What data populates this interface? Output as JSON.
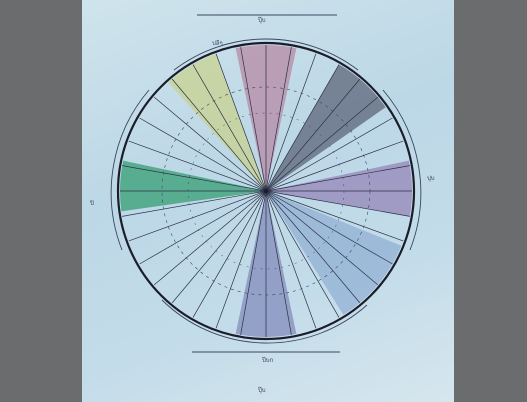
{
  "diagram": {
    "palette": {
      "background": "#6b6c6e",
      "paper": "#c6dde9",
      "ink": "#1b1d2a",
      "pink": "#b58aa6",
      "purple": "#9685b8",
      "darkgray": "#5e6579",
      "green": "#3fa17a",
      "yellow": "#c9d07a",
      "blue": "#7fa0cc",
      "slateblue": "#7f86b8"
    },
    "labels": {
      "top": "ปุ๊บ",
      "bottom": "ปุ๊บ",
      "top_arc": "ปลีๆ",
      "bottom_arc": "ปีบก",
      "left": "ปิ",
      "right": "ปุบ"
    }
  }
}
